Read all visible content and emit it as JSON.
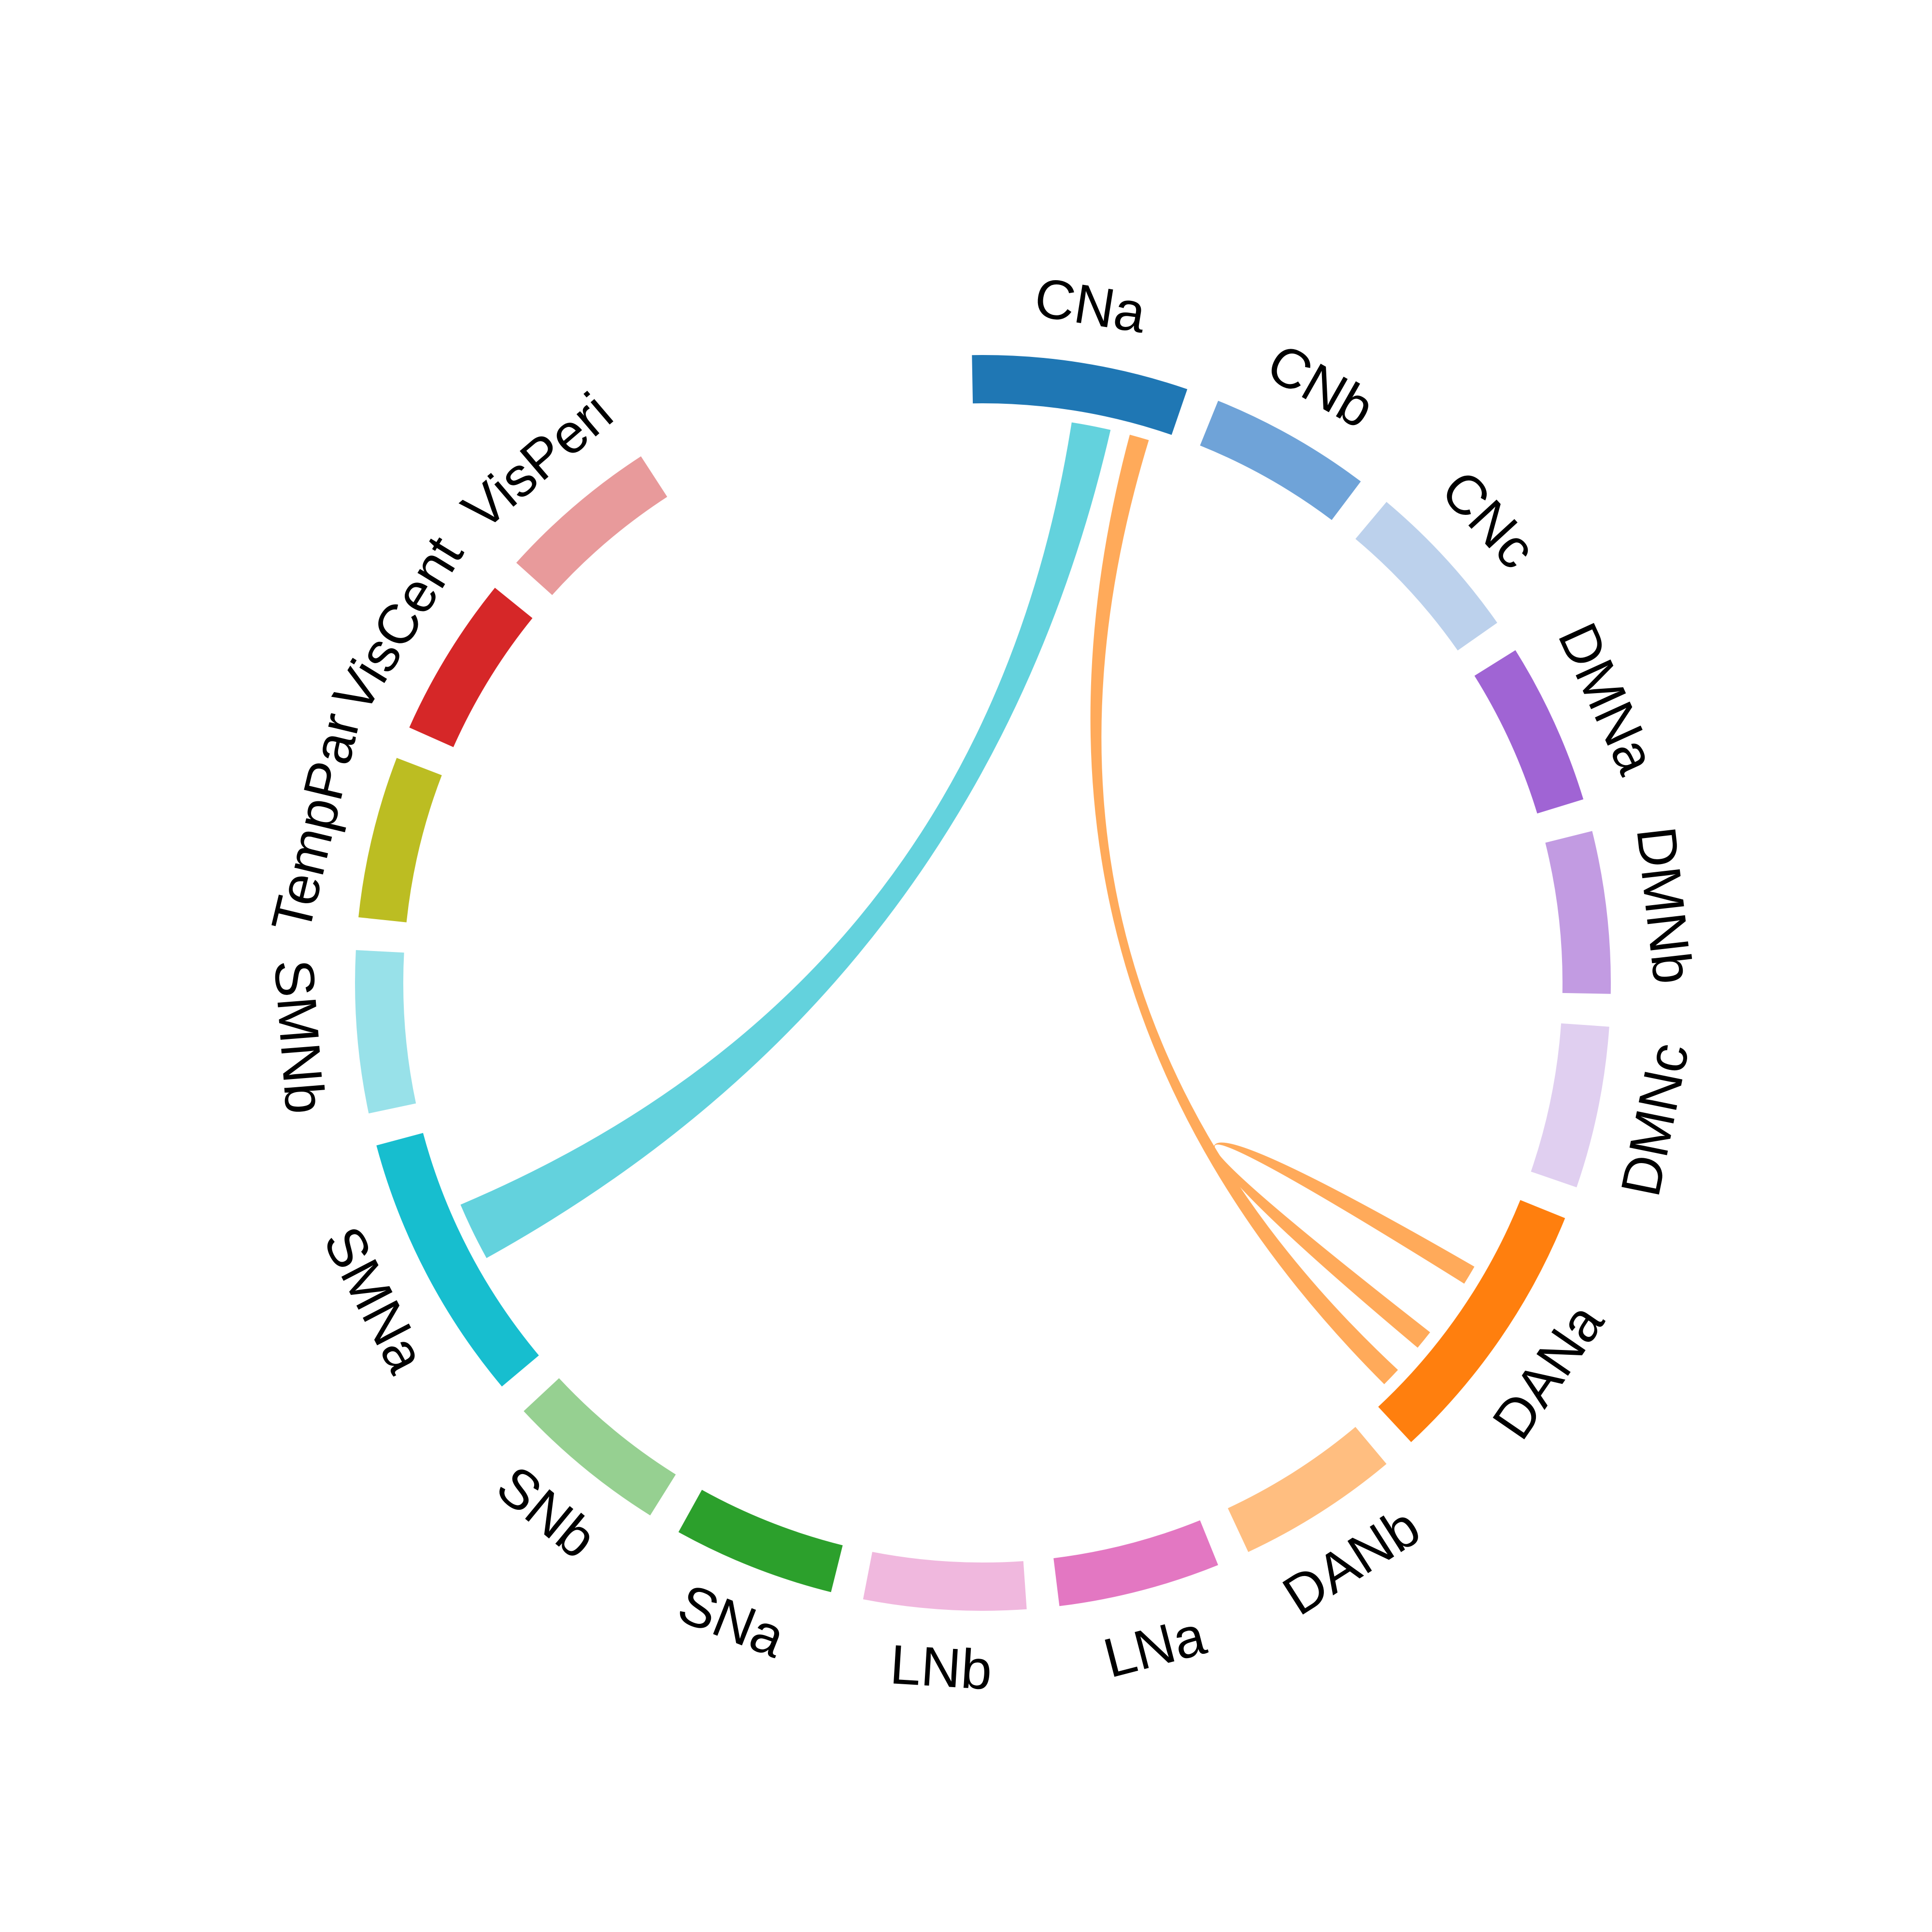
{
  "chart_data": {
    "type": "chord",
    "title": "",
    "sectors": [
      {
        "name": "CNa",
        "color": "#1f77b4",
        "start_deg": 0.0,
        "end_deg": 20.0
      },
      {
        "name": "CNb",
        "color": "#6fa3d8",
        "start_deg": 23.0,
        "end_deg": 38.0
      },
      {
        "name": "CNc",
        "color": "#bcd1ec",
        "start_deg": 41.0,
        "end_deg": 56.0
      },
      {
        "name": "DMNa",
        "color": "#a064d4",
        "start_deg": 59.0,
        "end_deg": 74.0
      },
      {
        "name": "DMNb",
        "color": "#c29be2",
        "start_deg": 77.0,
        "end_deg": 92.0
      },
      {
        "name": "DMNc",
        "color": "#e0cff0",
        "start_deg": 95.0,
        "end_deg": 110.0
      },
      {
        "name": "DANa",
        "color": "#ff7f0e",
        "start_deg": 113.0,
        "end_deg": 138.0
      },
      {
        "name": "DANb",
        "color": "#ffbe80",
        "start_deg": 141.0,
        "end_deg": 156.0
      },
      {
        "name": "LNa",
        "color": "#e377c2",
        "start_deg": 159.0,
        "end_deg": 174.0
      },
      {
        "name": "LNb",
        "color": "#f0b8de",
        "start_deg": 177.0,
        "end_deg": 192.0
      },
      {
        "name": "SNa",
        "color": "#2ca02c",
        "start_deg": 195.0,
        "end_deg": 210.0
      },
      {
        "name": "SNb",
        "color": "#96d091",
        "start_deg": 213.0,
        "end_deg": 228.0
      },
      {
        "name": "SMNa",
        "color": "#17becf",
        "start_deg": 231.0,
        "end_deg": 256.0
      },
      {
        "name": "SMNb",
        "color": "#98e1e9",
        "start_deg": 259.0,
        "end_deg": 274.0
      },
      {
        "name": "TempPar",
        "color": "#bcbd22",
        "start_deg": 277.0,
        "end_deg": 292.0
      },
      {
        "name": "VisCent",
        "color": "#d62728",
        "start_deg": 295.0,
        "end_deg": 310.0
      },
      {
        "name": "VisPeri",
        "color": "#e89a9b",
        "start_deg": 313.0,
        "end_deg": 328.0
      }
    ],
    "links": [
      {
        "source": "CNa",
        "target": "SMNa",
        "source_deg": [
          10.0,
          14.0
        ],
        "target_deg": [
          242.0,
          248.0
        ],
        "color": "#63d2dd"
      },
      {
        "source": "CNa",
        "target": "DANa",
        "source_deg": [
          16.0,
          18.0
        ],
        "target_deg": [
          134.0,
          136.0
        ],
        "color": "#ffaa5a"
      },
      {
        "source": "DANa",
        "target": "DANa",
        "source_deg": [
          121.0,
          123.0
        ],
        "target_deg": [
          129.0,
          131.0
        ],
        "color": "#ffaa5a"
      }
    ]
  }
}
